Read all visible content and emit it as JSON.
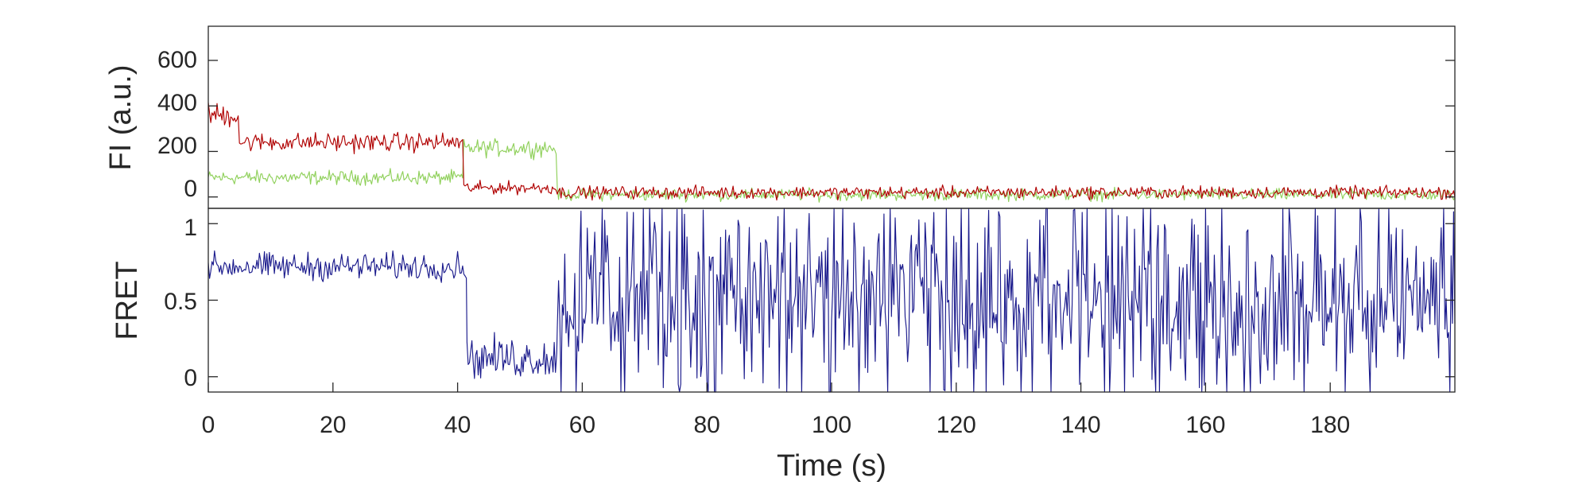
{
  "chart_data": [
    {
      "type": "line",
      "panel": "top",
      "ylabel": "FI (a.u.)",
      "xlabel": "",
      "xlim": [
        0,
        200
      ],
      "ylim": [
        -50,
        750
      ],
      "yticks": [
        0,
        200,
        400,
        600
      ],
      "grid": false,
      "legend": "none",
      "sample_interval_s": 0.2,
      "series": [
        {
          "color": "#8fd05a",
          "segments": [
            {
              "t_start": 0,
              "t_end": 41,
              "mean": 85,
              "noise": 45
            },
            {
              "t_start": 41,
              "t_end": 56,
              "mean": 215,
              "noise": 55
            },
            {
              "t_start": 56,
              "t_end": 200,
              "mean": 10,
              "noise": 38
            }
          ]
        },
        {
          "color": "#b00000",
          "segments": [
            {
              "t_start": 0,
              "t_end": 5,
              "mean": 360,
              "noise": 80
            },
            {
              "t_start": 5,
              "t_end": 41,
              "mean": 240,
              "noise": 60
            },
            {
              "t_start": 41,
              "t_end": 56,
              "mean": 40,
              "noise": 40
            },
            {
              "t_start": 56,
              "t_end": 200,
              "mean": 20,
              "noise": 40
            }
          ]
        }
      ]
    },
    {
      "type": "line",
      "panel": "bottom",
      "ylabel": "FRET",
      "xlabel": "Time (s)",
      "xlim": [
        0,
        200
      ],
      "ylim": [
        -0.1,
        1.1
      ],
      "yticks": [
        0,
        0.5,
        1
      ],
      "xticks": [
        0,
        20,
        40,
        60,
        80,
        100,
        120,
        140,
        160,
        180
      ],
      "grid": false,
      "legend": "none",
      "sample_interval_s": 0.2,
      "series": [
        {
          "color": "#1a1a8c",
          "segments": [
            {
              "t_start": 0,
              "t_end": 41.5,
              "mean": 0.72,
              "noise": 0.13
            },
            {
              "t_start": 41.5,
              "t_end": 56,
              "mean": 0.12,
              "noise": 0.2
            },
            {
              "t_start": 56,
              "t_end": 200,
              "mean": 0.5,
              "noise": 0.6
            }
          ]
        }
      ]
    }
  ],
  "top_panel": {
    "ylabel": "FI (a.u.)",
    "ytick_labels": [
      "600",
      "400",
      "200",
      "0"
    ]
  },
  "bottom_panel": {
    "ylabel": "FRET",
    "ytick_labels": [
      "1",
      "0.5",
      "0"
    ],
    "xlabel": "Time (s)",
    "xtick_labels": [
      "0",
      "20",
      "40",
      "60",
      "80",
      "100",
      "120",
      "140",
      "160",
      "180"
    ]
  }
}
